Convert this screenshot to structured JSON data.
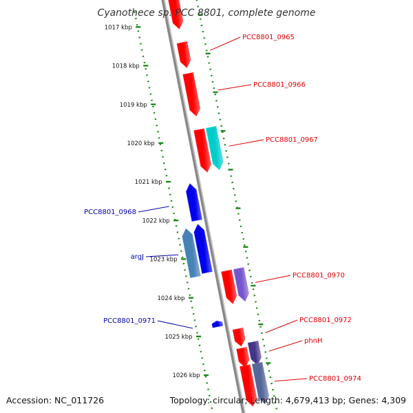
{
  "title": "Cyanothece sp. PCC 8801, complete genome",
  "footer": {
    "accession": "Accession: NC_011726",
    "stats": "Topology: circular; Length: 4,679,413 bp; Genes: 4,309"
  },
  "colors": {
    "plus_label": "#dd0000",
    "minus_label": "#0000aa",
    "tick": "#1a8a1a",
    "axis": "#888888",
    "red": "#ff0000",
    "cyan": "#00cccc",
    "blue": "#0000ee",
    "steelblue": "#4682b4",
    "purple": "#7755cc",
    "darkpurple": "#443388",
    "slate": "#556699"
  },
  "kbp_ticks": [
    {
      "kbp": 1017,
      "label": "1017 kbp"
    },
    {
      "kbp": 1018,
      "label": "1018 kbp"
    },
    {
      "kbp": 1019,
      "label": "1019 kbp"
    },
    {
      "kbp": 1020,
      "label": "1020 kbp"
    },
    {
      "kbp": 1021,
      "label": "1021 kbp"
    },
    {
      "kbp": 1022,
      "label": "1022 kbp"
    },
    {
      "kbp": 1023,
      "label": "1023 kbp"
    },
    {
      "kbp": 1024,
      "label": "1024 kbp"
    },
    {
      "kbp": 1025,
      "label": "1025 kbp"
    },
    {
      "kbp": 1026,
      "label": "1026 kbp"
    }
  ],
  "genes": [
    {
      "start": 1016.4,
      "end": 1017.25,
      "strand": "plus",
      "lane": 1,
      "color": "red",
      "label": ""
    },
    {
      "start": 1017.6,
      "end": 1018.25,
      "strand": "plus",
      "lane": 1,
      "color": "red",
      "label": "PCC8801_0965"
    },
    {
      "start": 1018.4,
      "end": 1019.5,
      "strand": "plus",
      "lane": 1,
      "color": "red",
      "label": "PCC8801_0966"
    },
    {
      "start": 1019.85,
      "end": 1020.95,
      "strand": "plus",
      "lane": 1,
      "color": "red",
      "label": ""
    },
    {
      "start": 1019.85,
      "end": 1020.95,
      "strand": "plus",
      "lane": 2,
      "color": "cyan",
      "label": "PCC8801_0967"
    },
    {
      "start": 1021.15,
      "end": 1022.1,
      "strand": "minus",
      "lane": 1,
      "color": "blue",
      "label": "PCC8801_0968"
    },
    {
      "start": 1022.2,
      "end": 1023.45,
      "strand": "minus",
      "lane": 1,
      "color": "blue",
      "label": ""
    },
    {
      "start": 1022.25,
      "end": 1023.5,
      "strand": "minus",
      "lane": 2,
      "color": "steelblue",
      "label": "argJ"
    },
    {
      "start": 1023.5,
      "end": 1024.35,
      "strand": "plus",
      "lane": 1,
      "color": "red",
      "label": ""
    },
    {
      "start": 1023.5,
      "end": 1024.35,
      "strand": "plus",
      "lane": 2,
      "color": "purple",
      "label": "PCC8801_0970"
    },
    {
      "start": 1024.7,
      "end": 1024.85,
      "strand": "minus",
      "lane": 1,
      "color": "blue",
      "label": "PCC8801_0971"
    },
    {
      "start": 1025.0,
      "end": 1025.45,
      "strand": "plus",
      "lane": 1,
      "color": "red",
      "label": "PCC8801_0972"
    },
    {
      "start": 1025.5,
      "end": 1026.0,
      "strand": "plus",
      "lane": 1,
      "color": "red",
      "label": ""
    },
    {
      "start": 1025.4,
      "end": 1026.0,
      "strand": "plus",
      "lane": 2,
      "color": "darkpurple",
      "label": "phnH"
    },
    {
      "start": 1025.95,
      "end": 1027.0,
      "strand": "plus",
      "lane": 1,
      "color": "red",
      "label": ""
    },
    {
      "start": 1025.95,
      "end": 1027.0,
      "strand": "plus",
      "lane": 2,
      "color": "slate",
      "label": "PCC8801_0974"
    }
  ]
}
